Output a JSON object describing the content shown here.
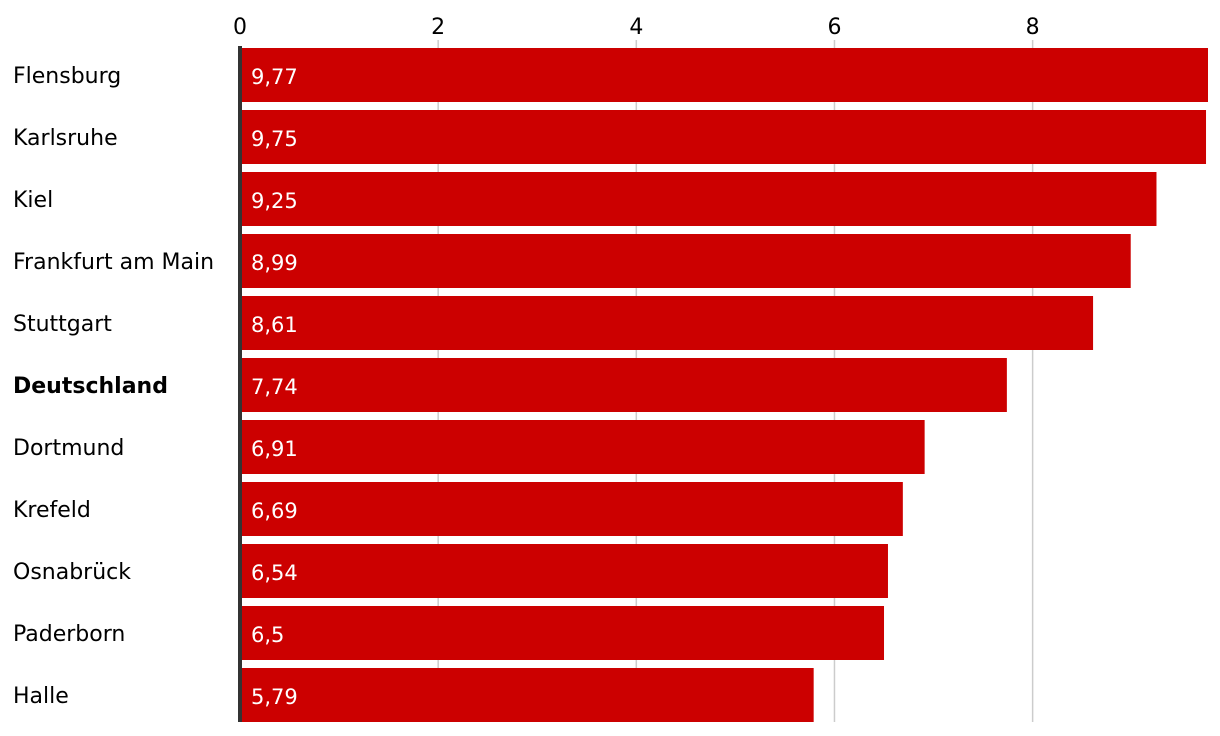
{
  "chart_data": {
    "type": "bar",
    "orientation": "horizontal",
    "title": "",
    "xlabel": "",
    "ylabel": "",
    "xlim": [
      0,
      9.77
    ],
    "x_ticks": [
      0,
      2,
      4,
      6,
      8
    ],
    "x_tick_labels": [
      "0",
      "2",
      "4",
      "6",
      "8"
    ],
    "grid": true,
    "categories": [
      "Flensburg",
      "Karlsruhe",
      "Kiel",
      "Frankfurt am Main",
      "Stuttgart",
      "Deutschland",
      "Dortmund",
      "Krefeld",
      "Osnabrück",
      "Paderborn",
      "Halle"
    ],
    "values": [
      9.77,
      9.75,
      9.25,
      8.99,
      8.61,
      7.74,
      6.91,
      6.69,
      6.54,
      6.5,
      5.79
    ],
    "value_labels": [
      "9,77",
      "9,75",
      "9,25",
      "8,99",
      "8,61",
      "7,74",
      "6,91",
      "6,69",
      "6,54",
      "6,5",
      "5,79"
    ],
    "highlight_category": "Deutschland",
    "bar_color": "#cc0000",
    "label_color": "#ffffff",
    "text_color": "#000000",
    "grid_color": "#cccccc",
    "axis_color": "#333333"
  }
}
